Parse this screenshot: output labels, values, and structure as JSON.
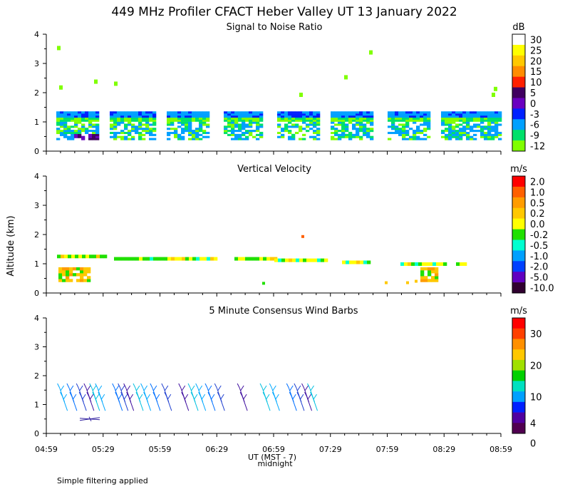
{
  "title": "449 MHz Profiler CFACT Heber Valley UT 13 January 2022",
  "ylabel": "Altitude (km)",
  "xlabel": "UT  (MST - 7)",
  "xlabel_note": "midnight",
  "footer": "Simple filtering applied",
  "x_ticks": [
    "04:59",
    "05:29",
    "05:59",
    "06:29",
    "06:59",
    "07:29",
    "07:59",
    "08:29",
    "08:59"
  ],
  "y_ticks": [
    "0",
    "1",
    "2",
    "3",
    "4"
  ],
  "chart_data": [
    {
      "type": "heatmap",
      "title": "Signal to Noise Ratio",
      "colorbar_unit": "dB",
      "colorbar_labels": [
        "30",
        "25",
        "20",
        "15",
        "10",
        "5",
        "0",
        "-3",
        "-6",
        "-9",
        "-12"
      ],
      "colorbar_colors": [
        "#ffffff",
        "#ffff00",
        "#ffc800",
        "#ff8c00",
        "#ff2000",
        "#400060",
        "#6a00c0",
        "#0020ff",
        "#00a0ff",
        "#00e06a",
        "#80ff00"
      ],
      "x_range": [
        "04:59",
        "08:59"
      ],
      "y_range_km": [
        0,
        4
      ],
      "data_gaps": [
        [
          "05:28",
          "05:32"
        ],
        [
          "05:57",
          "06:01"
        ],
        [
          "06:26",
          "06:31"
        ],
        [
          "06:55",
          "07:00"
        ],
        [
          "07:24",
          "07:28"
        ],
        [
          "07:53",
          "07:58"
        ],
        [
          "08:23",
          "08:27"
        ]
      ]
    },
    {
      "type": "heatmap",
      "title": "Vertical Velocity",
      "colorbar_unit": "m/s",
      "colorbar_labels": [
        "2.0",
        "1.0",
        "0.5",
        "0.2",
        "0.0",
        "-0.2",
        "-0.5",
        "-1.0",
        "-2.0",
        "-5.0",
        "-10.0"
      ],
      "colorbar_colors": [
        "#ff0000",
        "#ff6000",
        "#ff9c00",
        "#ffc800",
        "#ffff00",
        "#20e000",
        "#00ffd0",
        "#00a0ff",
        "#0040ff",
        "#6000c0",
        "#300030"
      ],
      "x_range": [
        "04:59",
        "08:59"
      ],
      "y_range_km": [
        0,
        4
      ]
    },
    {
      "type": "scatter",
      "title": "5 Minute Consensus Wind Barbs",
      "colorbar_unit": "m/s",
      "colorbar_labels": [
        "30",
        "20",
        "10",
        "4",
        "0"
      ],
      "colorbar_colors": [
        "#ff0000",
        "#ff4000",
        "#ff9000",
        "#ffc800",
        "#a0e000",
        "#00d000",
        "#00e0c0",
        "#00a0ff",
        "#0020ff",
        "#5000a0",
        "#500050"
      ],
      "x_range": [
        "04:59",
        "08:59"
      ],
      "y_range_km": [
        0,
        4
      ],
      "barb_times": [
        "05:06",
        "05:11",
        "05:16",
        "05:20",
        "05:23",
        "05:26",
        "05:35",
        "05:38",
        "05:41",
        "05:46",
        "05:50",
        "05:55",
        "06:01",
        "06:10",
        "06:15",
        "06:19",
        "06:24",
        "06:29",
        "06:41",
        "06:53",
        "06:58",
        "07:07",
        "07:11",
        "07:15",
        "07:18"
      ],
      "barb_altitude_km": 1.5
    }
  ]
}
